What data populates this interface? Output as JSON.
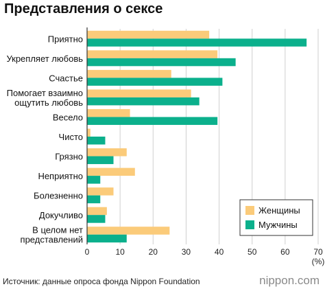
{
  "title": "Представления о сексе",
  "source": "Источник: данные опроса фонда Nippon Foundation",
  "brand": "nippon.com",
  "colors": {
    "women": "#fbcb7a",
    "men": "#0bb08c",
    "grid": "#cfcfcf",
    "axis": "#333333"
  },
  "chart_data": {
    "type": "bar",
    "orientation": "horizontal",
    "categories": [
      "Приятно",
      "Укрепляет любовь",
      "Счастье",
      "Помогает взаимно ощутить любовь",
      "Весело",
      "Чисто",
      "Грязно",
      "Неприятно",
      "Болезненно",
      "Докучливо",
      "В целом нет представлений"
    ],
    "category_lines": [
      [
        "Приятно"
      ],
      [
        "Укрепляет любовь"
      ],
      [
        "Счастье"
      ],
      [
        "Помогает взаимно",
        "ощутить любовь"
      ],
      [
        "Весело"
      ],
      [
        "Чисто"
      ],
      [
        "Грязно"
      ],
      [
        "Неприятно"
      ],
      [
        "Болезненно"
      ],
      [
        "Докучливо"
      ],
      [
        "В целом нет",
        "представлений"
      ]
    ],
    "series": [
      {
        "name": "Женщины",
        "color": "#fbcb7a",
        "values": [
          37,
          39.5,
          25.5,
          31.5,
          13,
          1,
          12,
          14.5,
          8,
          6,
          25
        ]
      },
      {
        "name": "Мужчины",
        "color": "#0bb08c",
        "values": [
          66.5,
          45,
          41,
          34,
          39.5,
          5.5,
          8,
          4,
          4,
          5.5,
          12
        ]
      }
    ],
    "xlim": [
      0,
      70
    ],
    "xticks": [
      0,
      10,
      20,
      30,
      40,
      50,
      60,
      70
    ],
    "xunit": "(%)",
    "grid": true,
    "legend_position": "bottom-right"
  }
}
